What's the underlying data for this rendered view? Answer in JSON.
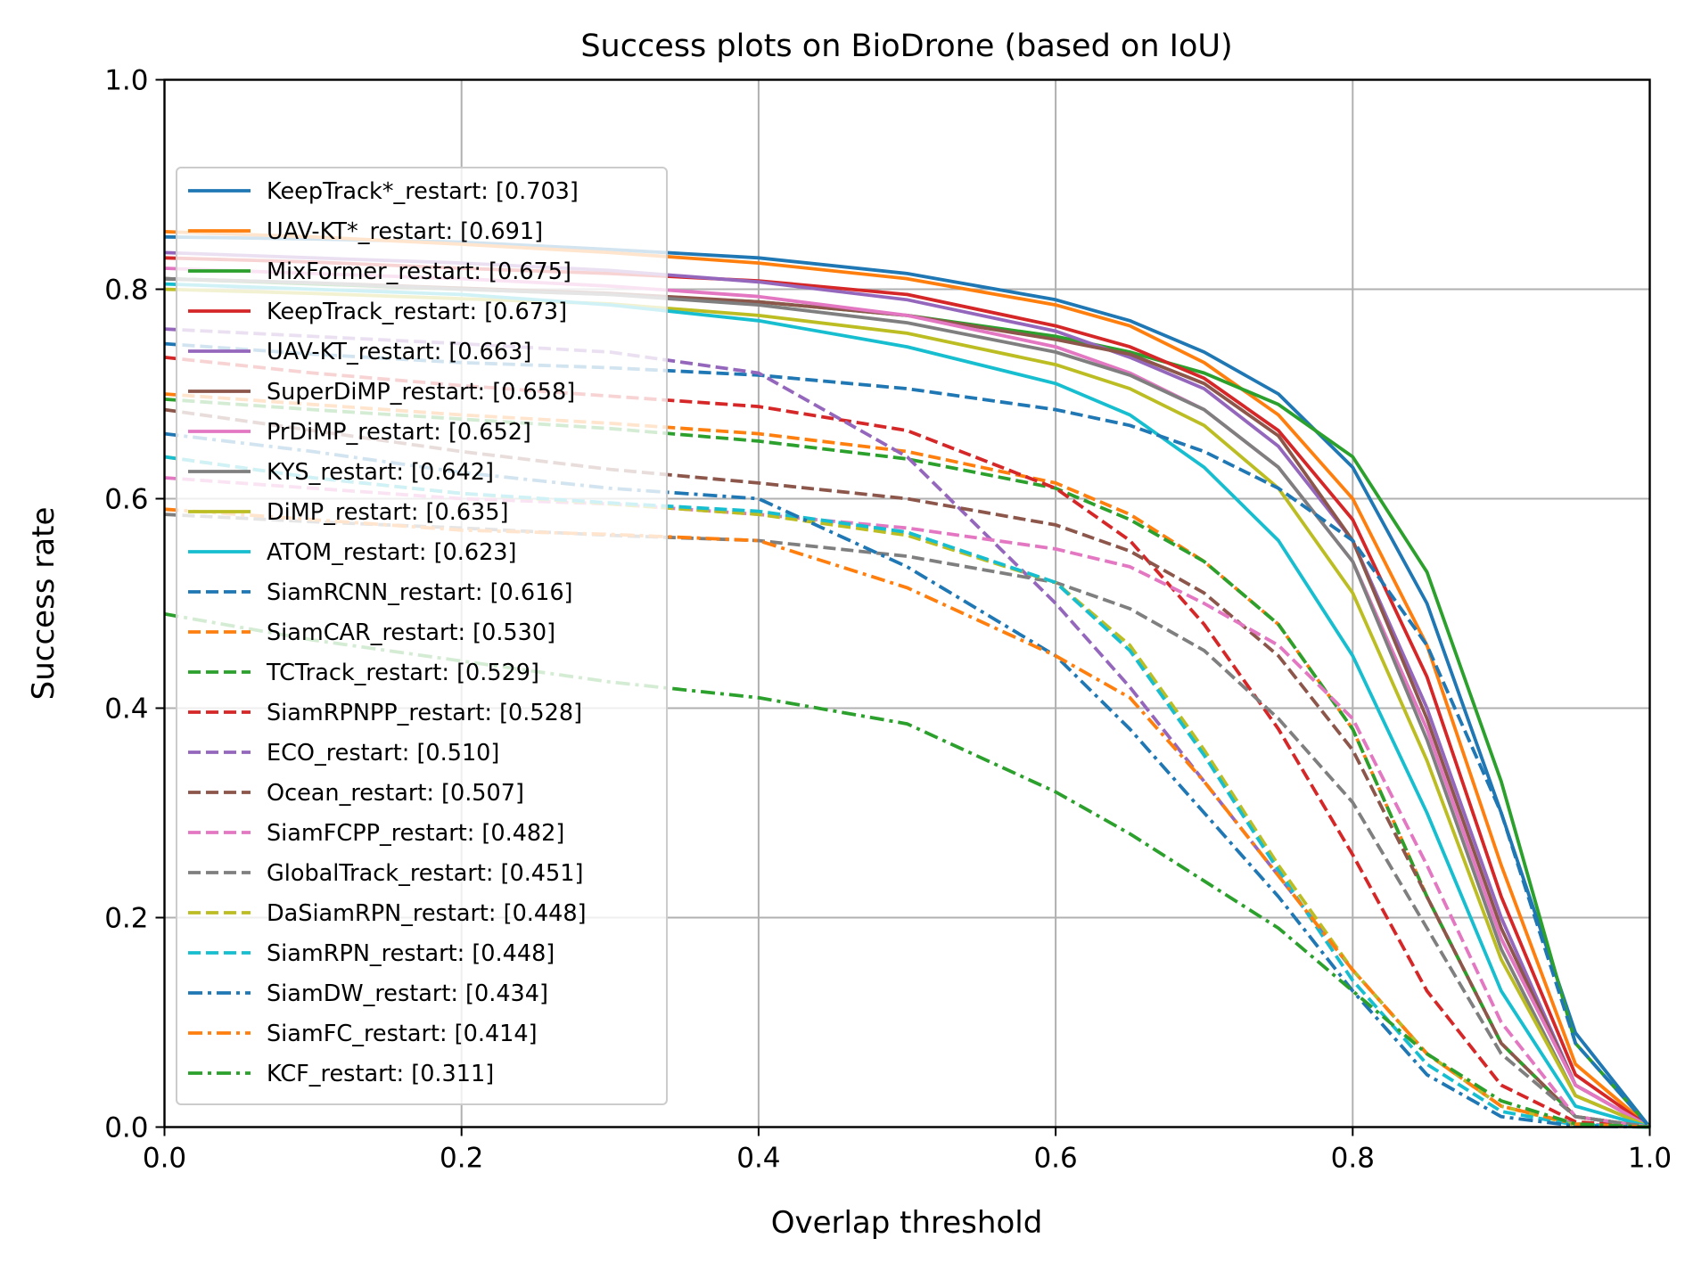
{
  "chart_data": {
    "type": "line",
    "title": "Success plots on BioDrone (based on IoU)",
    "xlabel": "Overlap threshold",
    "ylabel": "Success rate",
    "xlim": [
      0,
      1
    ],
    "ylim": [
      0,
      1
    ],
    "xticks": [
      "0.0",
      "0.2",
      "0.4",
      "0.6",
      "0.8",
      "1.0"
    ],
    "yticks": [
      "0.0",
      "0.2",
      "0.4",
      "0.6",
      "0.8",
      "1.0"
    ],
    "grid": true,
    "legend_position": "left",
    "x": [
      0,
      0.1,
      0.2,
      0.3,
      0.4,
      0.5,
      0.6,
      0.65,
      0.7,
      0.75,
      0.8,
      0.85,
      0.9,
      0.95,
      1.0
    ],
    "series": [
      {
        "name": "KeepTrack*_restart: [0.703]",
        "color": "#1f77b4",
        "style": "solid",
        "values": [
          0.85,
          0.848,
          0.845,
          0.838,
          0.83,
          0.815,
          0.79,
          0.77,
          0.74,
          0.7,
          0.63,
          0.5,
          0.3,
          0.09,
          0.0
        ]
      },
      {
        "name": "UAV-KT*_restart: [0.691]",
        "color": "#ff7f0e",
        "style": "solid",
        "values": [
          0.855,
          0.85,
          0.843,
          0.835,
          0.825,
          0.81,
          0.785,
          0.765,
          0.73,
          0.68,
          0.6,
          0.46,
          0.25,
          0.06,
          0.0
        ]
      },
      {
        "name": "MixFormer_restart: [0.675]",
        "color": "#2ca02c",
        "style": "solid",
        "values": [
          0.81,
          0.805,
          0.8,
          0.795,
          0.788,
          0.775,
          0.755,
          0.74,
          0.72,
          0.69,
          0.64,
          0.53,
          0.33,
          0.08,
          0.0
        ]
      },
      {
        "name": "KeepTrack_restart: [0.673]",
        "color": "#d62728",
        "style": "solid",
        "values": [
          0.83,
          0.826,
          0.82,
          0.815,
          0.808,
          0.795,
          0.765,
          0.745,
          0.715,
          0.665,
          0.58,
          0.43,
          0.22,
          0.05,
          0.0
        ]
      },
      {
        "name": "UAV-KT_restart: [0.663]",
        "color": "#9467bd",
        "style": "solid",
        "values": [
          0.835,
          0.83,
          0.825,
          0.818,
          0.807,
          0.79,
          0.76,
          0.735,
          0.705,
          0.65,
          0.56,
          0.4,
          0.2,
          0.04,
          0.0
        ]
      },
      {
        "name": "SuperDiMP_restart: [0.658]",
        "color": "#8c564b",
        "style": "solid",
        "values": [
          0.81,
          0.806,
          0.801,
          0.796,
          0.788,
          0.775,
          0.752,
          0.738,
          0.71,
          0.66,
          0.56,
          0.39,
          0.19,
          0.04,
          0.0
        ]
      },
      {
        "name": "PrDiMP_restart: [0.652]",
        "color": "#e377c2",
        "style": "solid",
        "values": [
          0.82,
          0.815,
          0.81,
          0.803,
          0.793,
          0.775,
          0.745,
          0.72,
          0.685,
          0.63,
          0.54,
          0.38,
          0.18,
          0.04,
          0.0
        ]
      },
      {
        "name": "KYS_restart: [0.642]",
        "color": "#7f7f7f",
        "style": "solid",
        "values": [
          0.81,
          0.806,
          0.8,
          0.795,
          0.785,
          0.768,
          0.74,
          0.718,
          0.685,
          0.63,
          0.54,
          0.37,
          0.17,
          0.03,
          0.0
        ]
      },
      {
        "name": "DiMP_restart: [0.635]",
        "color": "#bcbd22",
        "style": "solid",
        "values": [
          0.8,
          0.796,
          0.791,
          0.786,
          0.775,
          0.758,
          0.728,
          0.705,
          0.67,
          0.61,
          0.51,
          0.35,
          0.16,
          0.03,
          0.0
        ]
      },
      {
        "name": "ATOM_restart: [0.623]",
        "color": "#17becf",
        "style": "solid",
        "values": [
          0.805,
          0.8,
          0.795,
          0.785,
          0.77,
          0.745,
          0.71,
          0.68,
          0.63,
          0.56,
          0.45,
          0.3,
          0.13,
          0.02,
          0.0
        ]
      },
      {
        "name": "SiamRCNN_restart: [0.616]",
        "color": "#1f77b4",
        "style": "dashed",
        "values": [
          0.748,
          0.738,
          0.73,
          0.725,
          0.718,
          0.705,
          0.685,
          0.67,
          0.645,
          0.61,
          0.56,
          0.46,
          0.3,
          0.08,
          0.0
        ]
      },
      {
        "name": "SiamCAR_restart: [0.530]",
        "color": "#ff7f0e",
        "style": "dashed",
        "values": [
          0.7,
          0.69,
          0.68,
          0.672,
          0.662,
          0.645,
          0.615,
          0.585,
          0.54,
          0.48,
          0.38,
          0.22,
          0.08,
          0.01,
          0.0
        ]
      },
      {
        "name": "TCTrack_restart: [0.529]",
        "color": "#2ca02c",
        "style": "dashed",
        "values": [
          0.695,
          0.685,
          0.676,
          0.667,
          0.655,
          0.638,
          0.61,
          0.58,
          0.54,
          0.48,
          0.38,
          0.22,
          0.08,
          0.01,
          0.0
        ]
      },
      {
        "name": "SiamRPNPP_restart: [0.528]",
        "color": "#d62728",
        "style": "dashed",
        "values": [
          0.735,
          0.72,
          0.708,
          0.698,
          0.688,
          0.665,
          0.61,
          0.56,
          0.48,
          0.38,
          0.26,
          0.13,
          0.04,
          0.005,
          0.0
        ]
      },
      {
        "name": "ECO_restart: [0.510]",
        "color": "#9467bd",
        "style": "dashed",
        "values": [
          0.762,
          0.755,
          0.748,
          0.74,
          0.72,
          0.64,
          0.5,
          0.42,
          0.33,
          0.24,
          0.15,
          0.07,
          0.02,
          0.003,
          0.0
        ]
      },
      {
        "name": "Ocean_restart: [0.507]",
        "color": "#8c564b",
        "style": "dashed",
        "values": [
          0.685,
          0.665,
          0.645,
          0.628,
          0.615,
          0.6,
          0.575,
          0.55,
          0.51,
          0.45,
          0.36,
          0.22,
          0.08,
          0.01,
          0.0
        ]
      },
      {
        "name": "SiamFCPP_restart: [0.482]",
        "color": "#e377c2",
        "style": "dashed",
        "values": [
          0.62,
          0.61,
          0.6,
          0.595,
          0.585,
          0.572,
          0.552,
          0.535,
          0.5,
          0.46,
          0.39,
          0.25,
          0.1,
          0.01,
          0.0
        ]
      },
      {
        "name": "GlobalTrack_restart: [0.451]",
        "color": "#7f7f7f",
        "style": "dashed",
        "values": [
          0.585,
          0.578,
          0.572,
          0.565,
          0.56,
          0.545,
          0.52,
          0.495,
          0.455,
          0.39,
          0.31,
          0.19,
          0.07,
          0.01,
          0.0
        ]
      },
      {
        "name": "DaSiamRPN_restart: [0.448]",
        "color": "#bcbd22",
        "style": "dashed",
        "values": [
          0.64,
          0.62,
          0.605,
          0.595,
          0.585,
          0.565,
          0.52,
          0.46,
          0.36,
          0.25,
          0.15,
          0.07,
          0.02,
          0.002,
          0.0
        ]
      },
      {
        "name": "SiamRPN_restart: [0.448]",
        "color": "#17becf",
        "style": "dashed",
        "values": [
          0.64,
          0.62,
          0.605,
          0.596,
          0.588,
          0.568,
          0.52,
          0.455,
          0.355,
          0.245,
          0.14,
          0.06,
          0.015,
          0.002,
          0.0
        ]
      },
      {
        "name": "SiamDW_restart: [0.434]",
        "color": "#1f77b4",
        "style": "dashdot",
        "values": [
          0.662,
          0.645,
          0.625,
          0.61,
          0.6,
          0.535,
          0.45,
          0.38,
          0.3,
          0.22,
          0.13,
          0.05,
          0.01,
          0.001,
          0.0
        ]
      },
      {
        "name": "SiamFC_restart: [0.414]",
        "color": "#ff7f0e",
        "style": "dashdot",
        "values": [
          0.59,
          0.58,
          0.57,
          0.566,
          0.56,
          0.515,
          0.45,
          0.41,
          0.33,
          0.24,
          0.15,
          0.07,
          0.02,
          0.003,
          0.0
        ]
      },
      {
        "name": "KCF_restart: [0.311]",
        "color": "#2ca02c",
        "style": "dashdot",
        "values": [
          0.49,
          0.465,
          0.445,
          0.425,
          0.41,
          0.385,
          0.32,
          0.28,
          0.235,
          0.19,
          0.13,
          0.07,
          0.025,
          0.003,
          0.0
        ]
      }
    ]
  }
}
